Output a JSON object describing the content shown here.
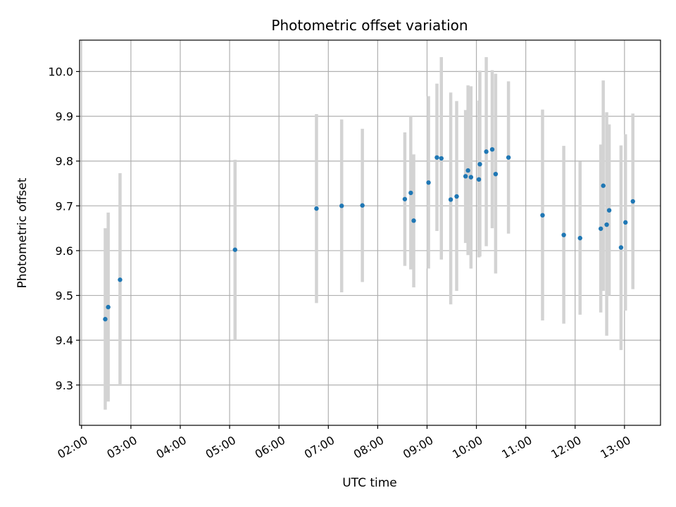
{
  "chart_data": {
    "type": "scatter",
    "title": "Photometric offset variation",
    "xlabel": "UTC time",
    "ylabel": "Photometric offset",
    "x_unit": "UTC hour (decimal hours)",
    "xlim": [
      1.96,
      13.73
    ],
    "ylim": [
      9.21,
      10.07
    ],
    "x_ticks": [
      2,
      3,
      4,
      5,
      6,
      7,
      8,
      9,
      10,
      11,
      12,
      13
    ],
    "x_tick_labels": [
      "02:00",
      "03:00",
      "04:00",
      "05:00",
      "06:00",
      "07:00",
      "08:00",
      "09:00",
      "10:00",
      "11:00",
      "12:00",
      "13:00"
    ],
    "y_ticks": [
      9.3,
      9.4,
      9.5,
      9.6,
      9.7,
      9.8,
      9.9,
      10.0
    ],
    "y_tick_labels": [
      "9.3",
      "9.4",
      "9.5",
      "9.6",
      "9.7",
      "9.8",
      "9.9",
      "10.0"
    ],
    "grid": true,
    "colors": {
      "marker": "#1f77b4",
      "errorbar": "#d3d3d3",
      "grid": "#b0b0b0"
    },
    "points": [
      {
        "x": 2.48,
        "y": 9.447,
        "low": 9.245,
        "high": 9.65
      },
      {
        "x": 2.54,
        "y": 9.474,
        "low": 9.263,
        "high": 9.685
      },
      {
        "x": 2.78,
        "y": 9.535,
        "low": 9.298,
        "high": 9.773
      },
      {
        "x": 5.11,
        "y": 9.602,
        "low": 9.4,
        "high": 9.803
      },
      {
        "x": 6.76,
        "y": 9.694,
        "low": 9.483,
        "high": 9.905
      },
      {
        "x": 7.27,
        "y": 9.7,
        "low": 9.507,
        "high": 9.893
      },
      {
        "x": 7.69,
        "y": 9.701,
        "low": 9.53,
        "high": 9.872
      },
      {
        "x": 8.55,
        "y": 9.715,
        "low": 9.566,
        "high": 9.864
      },
      {
        "x": 8.67,
        "y": 9.729,
        "low": 9.558,
        "high": 9.9
      },
      {
        "x": 8.73,
        "y": 9.667,
        "low": 9.518,
        "high": 9.815
      },
      {
        "x": 9.03,
        "y": 9.752,
        "low": 9.56,
        "high": 9.945
      },
      {
        "x": 9.2,
        "y": 9.808,
        "low": 9.644,
        "high": 9.973
      },
      {
        "x": 9.29,
        "y": 9.806,
        "low": 9.58,
        "high": 10.032
      },
      {
        "x": 9.48,
        "y": 9.714,
        "low": 9.48,
        "high": 9.953
      },
      {
        "x": 9.6,
        "y": 9.721,
        "low": 9.51,
        "high": 9.934
      },
      {
        "x": 9.78,
        "y": 9.766,
        "low": 9.617,
        "high": 9.914
      },
      {
        "x": 9.83,
        "y": 9.779,
        "low": 9.59,
        "high": 9.969
      },
      {
        "x": 9.89,
        "y": 9.764,
        "low": 9.56,
        "high": 9.967
      },
      {
        "x": 10.05,
        "y": 9.759,
        "low": 9.585,
        "high": 9.935
      },
      {
        "x": 10.07,
        "y": 9.793,
        "low": 9.587,
        "high": 10.002
      },
      {
        "x": 10.2,
        "y": 9.821,
        "low": 9.61,
        "high": 10.032
      },
      {
        "x": 10.32,
        "y": 9.826,
        "low": 9.65,
        "high": 10.003
      },
      {
        "x": 10.39,
        "y": 9.771,
        "low": 9.549,
        "high": 9.995
      },
      {
        "x": 10.65,
        "y": 9.808,
        "low": 9.638,
        "high": 9.978
      },
      {
        "x": 11.34,
        "y": 9.679,
        "low": 9.444,
        "high": 9.915
      },
      {
        "x": 11.77,
        "y": 9.635,
        "low": 9.437,
        "high": 9.834
      },
      {
        "x": 12.1,
        "y": 9.628,
        "low": 9.457,
        "high": 9.799
      },
      {
        "x": 12.52,
        "y": 9.649,
        "low": 9.462,
        "high": 9.837
      },
      {
        "x": 12.57,
        "y": 9.745,
        "low": 9.51,
        "high": 9.98
      },
      {
        "x": 12.64,
        "y": 9.658,
        "low": 9.41,
        "high": 9.909
      },
      {
        "x": 12.69,
        "y": 9.69,
        "low": 9.5,
        "high": 9.882
      },
      {
        "x": 12.93,
        "y": 9.607,
        "low": 9.378,
        "high": 9.835
      },
      {
        "x": 13.02,
        "y": 9.663,
        "low": 9.466,
        "high": 9.86
      },
      {
        "x": 13.17,
        "y": 9.71,
        "low": 9.514,
        "high": 9.906
      }
    ]
  }
}
